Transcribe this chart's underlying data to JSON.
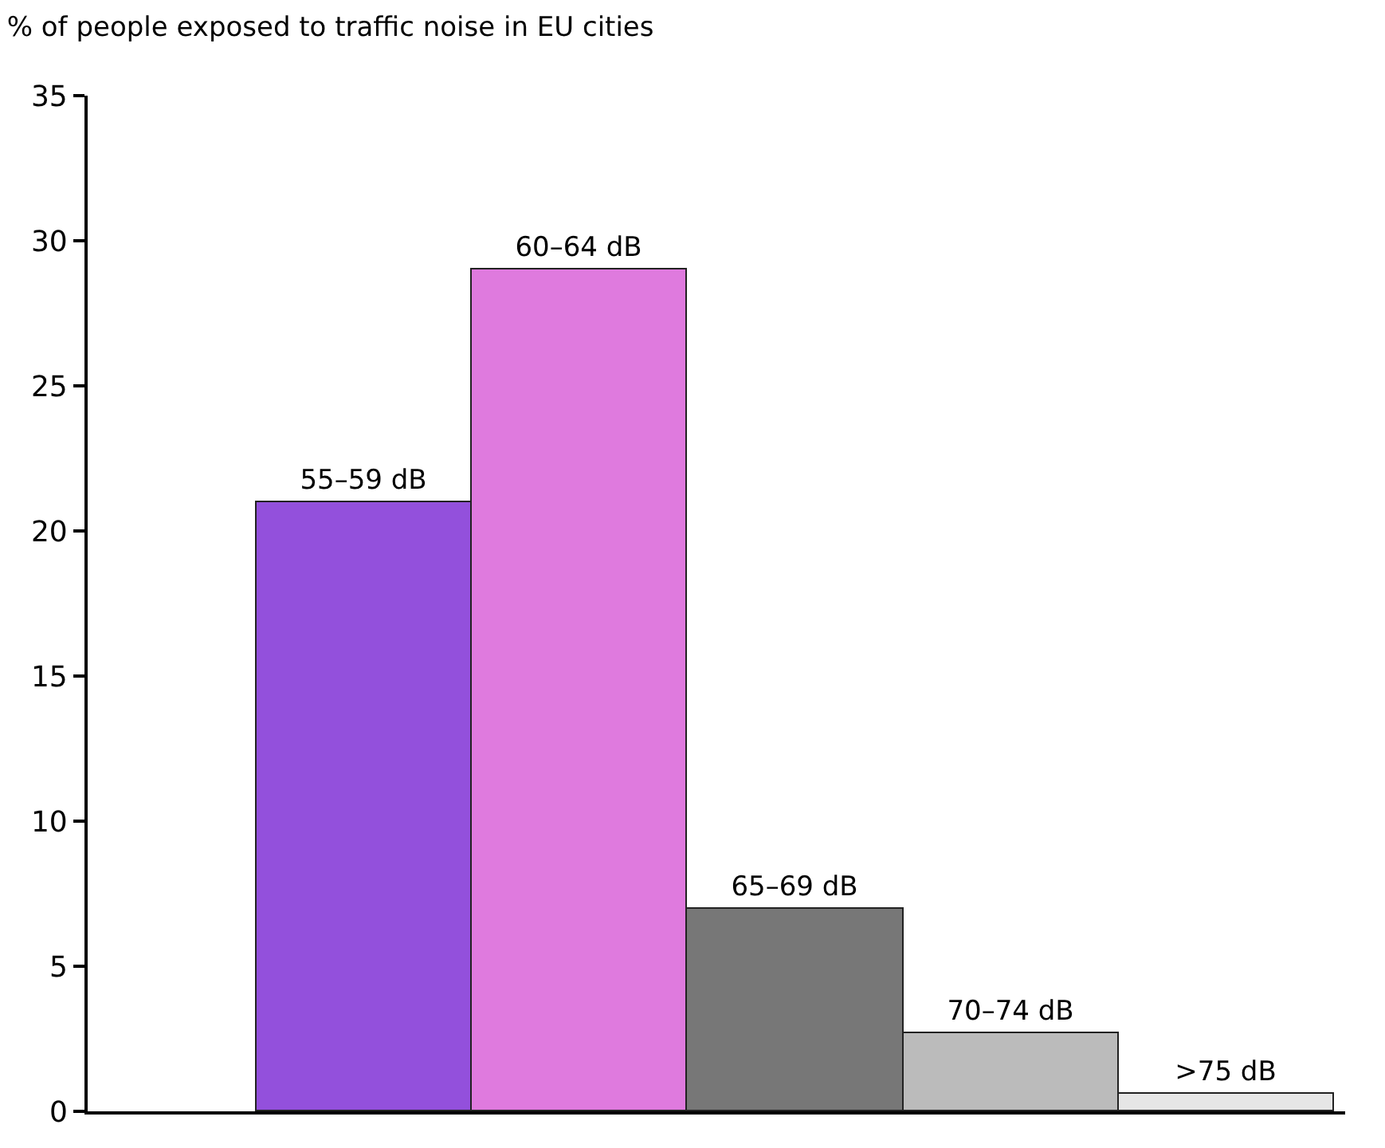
{
  "chart_data": {
    "type": "bar",
    "title": "% of people exposed to traffic noise in EU cities",
    "categories": [
      "55–59 dB",
      "60–64 dB",
      "65–69 dB",
      "70–74 dB",
      ">75 dB"
    ],
    "values": [
      21,
      29,
      7,
      2.7,
      0.6
    ],
    "colors": [
      "#9350dc",
      "#df7ade",
      "#777777",
      "#bbbbbb",
      "#e6e6e6"
    ],
    "ylim": [
      0,
      35
    ],
    "yticks": [
      0,
      5,
      10,
      15,
      20,
      25,
      30,
      35
    ],
    "legend": false,
    "tick_labels": "y"
  }
}
